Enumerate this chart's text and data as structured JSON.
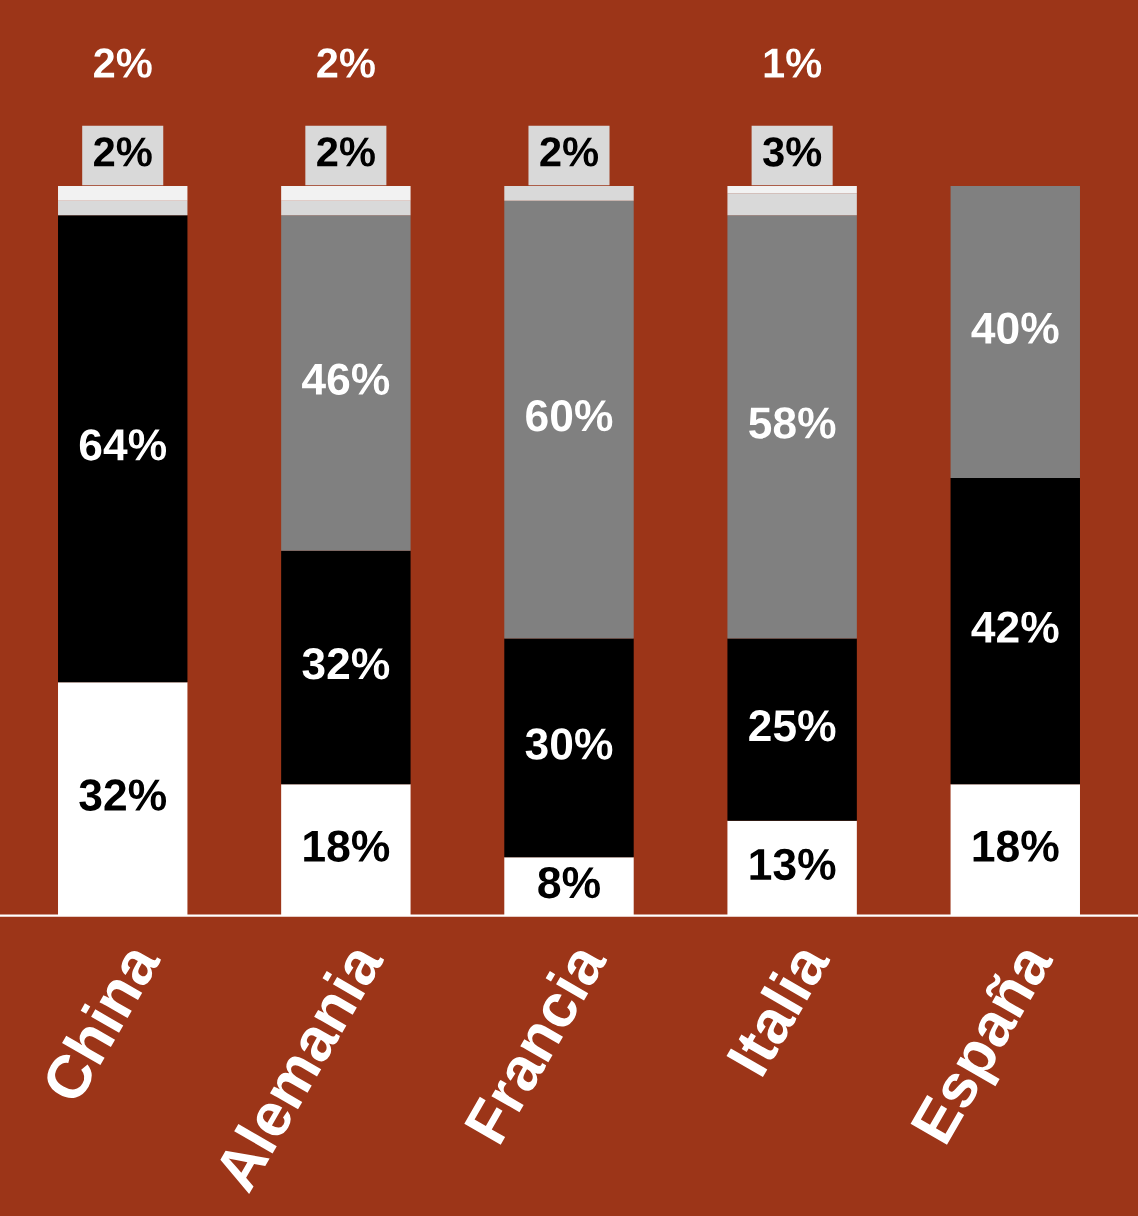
{
  "chart_data": {
    "type": "bar",
    "stacked": true,
    "categories": [
      "China",
      "Alemania",
      "Francia",
      "Italia",
      "España"
    ],
    "series": [
      {
        "color": "#ffffff",
        "values": [
          32,
          18,
          8,
          13,
          18
        ],
        "value_labels": [
          "32%",
          "18%",
          "8%",
          "13%",
          "18%"
        ]
      },
      {
        "color": "#000000",
        "values": [
          64,
          32,
          30,
          25,
          42
        ],
        "value_labels": [
          "64%",
          "32%",
          "30%",
          "25%",
          "42%"
        ]
      },
      {
        "color": "#808080",
        "values": [
          null,
          46,
          60,
          58,
          40
        ],
        "value_labels": [
          null,
          "46%",
          "60%",
          "58%",
          "40%"
        ]
      },
      {
        "color": "#d9d9d9",
        "values": [
          2,
          2,
          2,
          3,
          null
        ],
        "value_labels": [
          "2%",
          "2%",
          "2%",
          "3%",
          null
        ]
      },
      {
        "color": "#f2f2f2",
        "values": [
          2,
          2,
          null,
          1,
          null
        ],
        "value_labels": [
          "2%",
          "2%",
          null,
          "1%",
          null
        ]
      }
    ],
    "legend": false,
    "grid": false
  }
}
